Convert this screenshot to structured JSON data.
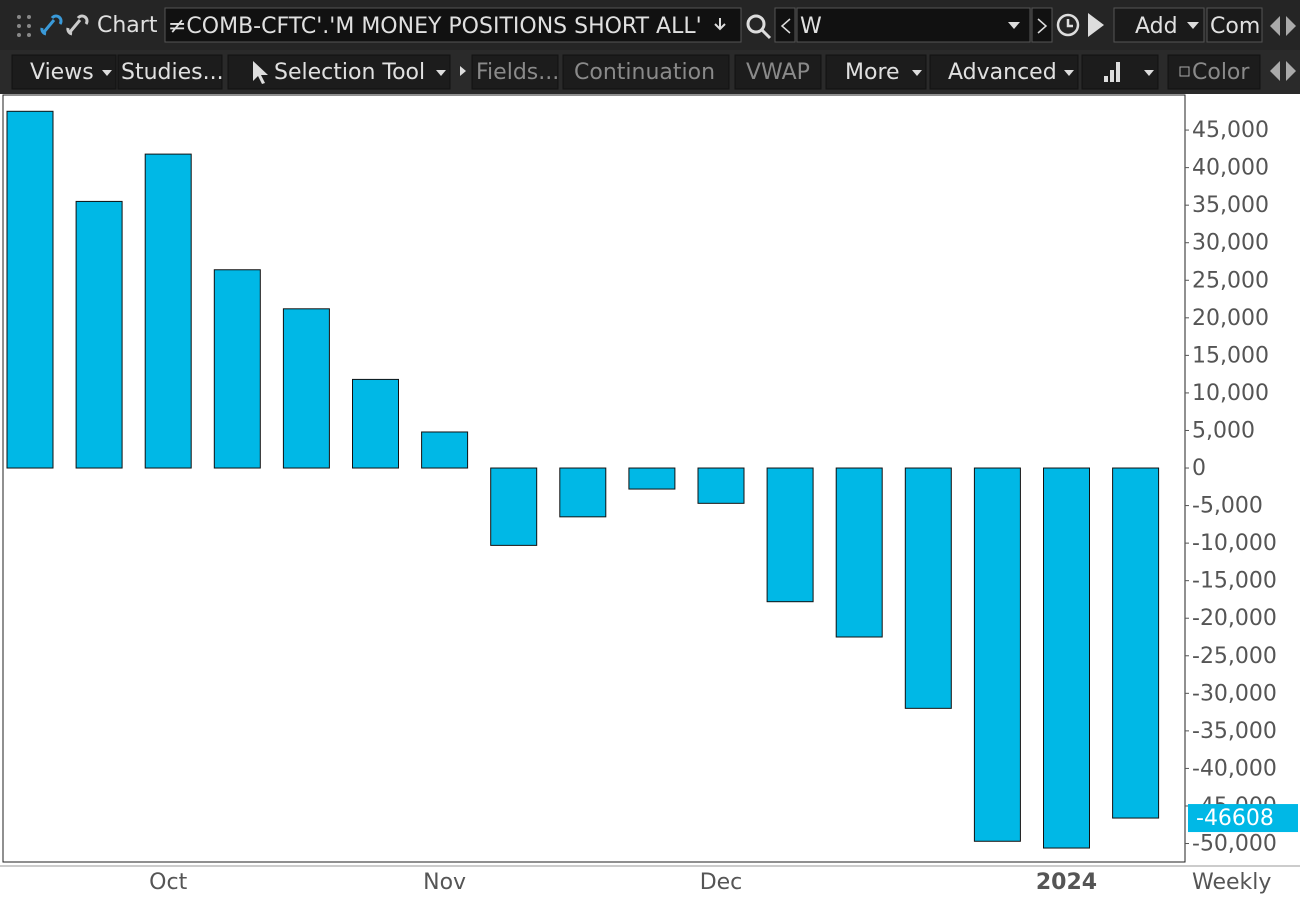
{
  "toolbar": {
    "title": "Chart",
    "symbol": "≠COMB-CFTC'.'M MONEY POSITIONS SHORT ALL'",
    "aggregation": "W",
    "add": "Add",
    "com": "Com",
    "buttons": [
      "Views",
      "Studies...",
      "Selection Tool",
      "Fields...",
      "Continuation",
      "VWAP",
      "More",
      "Advanced",
      "Color"
    ]
  },
  "chart_data": {
    "type": "bar",
    "period": "Weekly",
    "categories": [
      null,
      null,
      "Oct",
      null,
      null,
      null,
      "Nov",
      null,
      null,
      null,
      "Dec",
      null,
      null,
      null,
      null,
      "2024",
      null
    ],
    "values": [
      47500,
      35500,
      41800,
      26400,
      21200,
      11800,
      4800,
      -10300,
      -6500,
      -2800,
      -4700,
      -17800,
      -22500,
      -32000,
      -49700,
      -50600,
      -46608
    ],
    "color": "#00b8e6",
    "ylim": [
      -52460,
      49670
    ],
    "yticks": [
      {
        "value": 45000,
        "label": "45,000"
      },
      {
        "value": 40000,
        "label": "40,000"
      },
      {
        "value": 35000,
        "label": "35,000"
      },
      {
        "value": 30000,
        "label": "30,000"
      },
      {
        "value": 25000,
        "label": "25,000"
      },
      {
        "value": 20000,
        "label": "20,000"
      },
      {
        "value": 15000,
        "label": "15,000"
      },
      {
        "value": 10000,
        "label": "10,000"
      },
      {
        "value": 5000,
        "label": "5,000"
      },
      0,
      {
        "value": -5000,
        "label": "-5,000"
      },
      {
        "value": -10000,
        "label": "-10,000"
      },
      {
        "value": -15000,
        "label": "-15,000"
      },
      {
        "value": -20000,
        "label": "-20,000"
      },
      {
        "value": -25000,
        "label": "-25,000"
      },
      {
        "value": -30000,
        "label": "-30,000"
      },
      {
        "value": -35000,
        "label": "-35,000"
      },
      {
        "value": -40000,
        "label": "-40,000"
      },
      {
        "value": -45000,
        "label": "-45,000"
      },
      {
        "value": -50000,
        "label": "-50,000"
      }
    ]
  }
}
